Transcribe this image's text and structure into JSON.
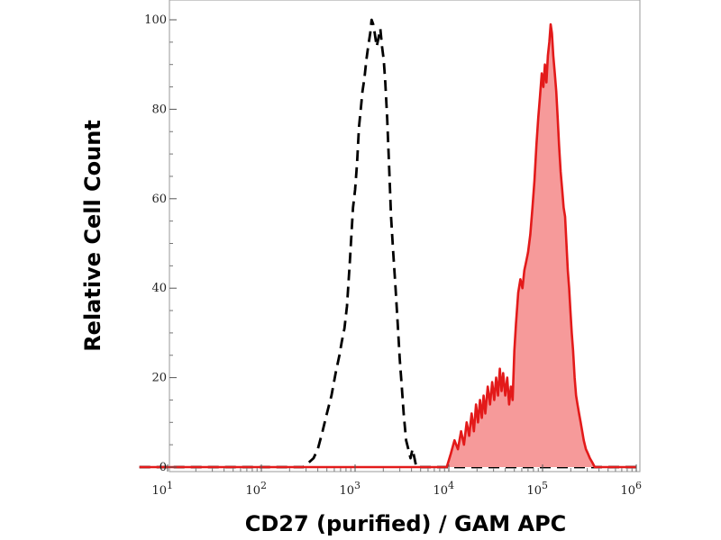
{
  "chart_data": {
    "type": "area",
    "title": "",
    "xlabel": "CD27 (purified) / GAM APC",
    "ylabel": "Relative Cell Count",
    "x_scale": "log",
    "xlim": [
      5,
      1200000
    ],
    "ylim": [
      0,
      100
    ],
    "grid": false,
    "legend": "none",
    "x_ticks": [
      {
        "base": "10",
        "exp": "1",
        "value": 10
      },
      {
        "base": "10",
        "exp": "2",
        "value": 100
      },
      {
        "base": "10",
        "exp": "3",
        "value": 1000
      },
      {
        "base": "10",
        "exp": "4",
        "value": 10000
      },
      {
        "base": "10",
        "exp": "5",
        "value": 100000
      },
      {
        "base": "10",
        "exp": "6",
        "value": 1000000
      }
    ],
    "y_ticks": [
      {
        "label": "0",
        "value": 0
      },
      {
        "label": "20",
        "value": 20
      },
      {
        "label": "40",
        "value": 40
      },
      {
        "label": "60",
        "value": 60
      },
      {
        "label": "80",
        "value": 80
      },
      {
        "label": "100",
        "value": 100
      }
    ],
    "series": [
      {
        "style": "dashed",
        "color": "#000000",
        "fill": "none",
        "points": [
          [
            5,
            0
          ],
          [
            200,
            0
          ],
          [
            280,
            0
          ],
          [
            320,
            1
          ],
          [
            360,
            2
          ],
          [
            400,
            4
          ],
          [
            450,
            8
          ],
          [
            500,
            12
          ],
          [
            560,
            16
          ],
          [
            620,
            21
          ],
          [
            680,
            25
          ],
          [
            720,
            28
          ],
          [
            770,
            31
          ],
          [
            820,
            36
          ],
          [
            880,
            46
          ],
          [
            950,
            58
          ],
          [
            1000,
            62
          ],
          [
            1050,
            68
          ],
          [
            1100,
            76
          ],
          [
            1150,
            80
          ],
          [
            1200,
            84
          ],
          [
            1260,
            87
          ],
          [
            1320,
            91
          ],
          [
            1380,
            94
          ],
          [
            1450,
            97
          ],
          [
            1500,
            100
          ],
          [
            1560,
            99
          ],
          [
            1620,
            97
          ],
          [
            1700,
            94
          ],
          [
            1780,
            96
          ],
          [
            1860,
            98
          ],
          [
            1940,
            94
          ],
          [
            2020,
            91
          ],
          [
            2100,
            86
          ],
          [
            2200,
            78
          ],
          [
            2300,
            68
          ],
          [
            2420,
            56
          ],
          [
            2550,
            48
          ],
          [
            2700,
            40
          ],
          [
            2850,
            32
          ],
          [
            3000,
            24
          ],
          [
            3150,
            18
          ],
          [
            3300,
            12
          ],
          [
            3500,
            6
          ],
          [
            3700,
            4
          ],
          [
            3900,
            2
          ],
          [
            4100,
            4
          ],
          [
            4300,
            2
          ],
          [
            4500,
            0
          ],
          [
            6000,
            0
          ],
          [
            20000,
            0
          ],
          [
            60000,
            0
          ],
          [
            200000,
            0
          ],
          [
            1000000,
            0
          ]
        ]
      },
      {
        "style": "solid",
        "color": "#e31a1a",
        "fill": "#f69a9a",
        "points": [
          [
            5,
            0
          ],
          [
            9500,
            0
          ],
          [
            10500,
            3
          ],
          [
            11500,
            6
          ],
          [
            12500,
            4
          ],
          [
            13500,
            8
          ],
          [
            14500,
            5
          ],
          [
            15500,
            10
          ],
          [
            16500,
            7
          ],
          [
            17500,
            12
          ],
          [
            18500,
            8
          ],
          [
            19500,
            14
          ],
          [
            20500,
            10
          ],
          [
            21500,
            15
          ],
          [
            22500,
            11
          ],
          [
            23500,
            16
          ],
          [
            24500,
            12
          ],
          [
            26000,
            18
          ],
          [
            27500,
            14
          ],
          [
            29000,
            19
          ],
          [
            30500,
            15
          ],
          [
            32000,
            20
          ],
          [
            33500,
            16
          ],
          [
            35000,
            22
          ],
          [
            36500,
            17
          ],
          [
            38000,
            21
          ],
          [
            40000,
            16
          ],
          [
            42000,
            20
          ],
          [
            44000,
            14
          ],
          [
            46000,
            18
          ],
          [
            48000,
            15
          ],
          [
            50000,
            26
          ],
          [
            52000,
            32
          ],
          [
            55000,
            39
          ],
          [
            58000,
            42
          ],
          [
            61000,
            40
          ],
          [
            64000,
            44
          ],
          [
            67000,
            46
          ],
          [
            70000,
            48
          ],
          [
            74000,
            52
          ],
          [
            78000,
            58
          ],
          [
            82000,
            64
          ],
          [
            86000,
            72
          ],
          [
            90000,
            78
          ],
          [
            94000,
            83
          ],
          [
            98000,
            88
          ],
          [
            102000,
            85
          ],
          [
            106000,
            90
          ],
          [
            110000,
            86
          ],
          [
            114000,
            92
          ],
          [
            118000,
            95
          ],
          [
            122000,
            99
          ],
          [
            126000,
            97
          ],
          [
            130000,
            92
          ],
          [
            135000,
            88
          ],
          [
            140000,
            84
          ],
          [
            145000,
            78
          ],
          [
            150000,
            72
          ],
          [
            156000,
            66
          ],
          [
            162000,
            62
          ],
          [
            168000,
            58
          ],
          [
            174000,
            56
          ],
          [
            180000,
            50
          ],
          [
            186000,
            44
          ],
          [
            192000,
            40
          ],
          [
            198000,
            35
          ],
          [
            205000,
            30
          ],
          [
            212000,
            26
          ],
          [
            220000,
            20
          ],
          [
            228000,
            16
          ],
          [
            236000,
            14
          ],
          [
            245000,
            12
          ],
          [
            255000,
            10
          ],
          [
            265000,
            8
          ],
          [
            275000,
            6
          ],
          [
            290000,
            4
          ],
          [
            305000,
            3
          ],
          [
            320000,
            2
          ],
          [
            340000,
            1
          ],
          [
            360000,
            0
          ],
          [
            1000000,
            0
          ]
        ]
      }
    ]
  }
}
